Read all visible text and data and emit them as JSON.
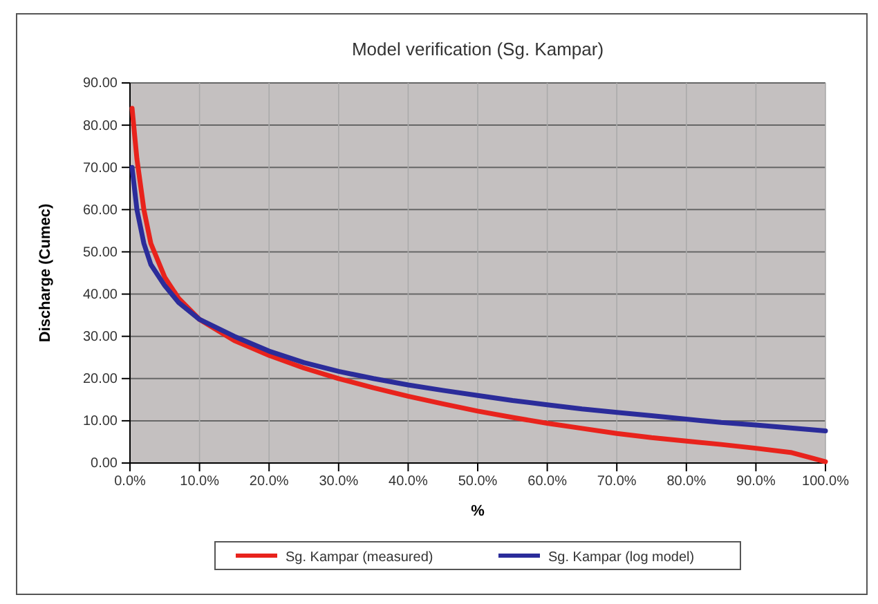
{
  "chart_data": {
    "type": "line",
    "title": "Model verification (Sg. Kampar)",
    "xlabel": "%",
    "ylabel": "Discharge (Cumec)",
    "xlim": [
      0,
      100
    ],
    "xticks": [
      {
        "value": 0,
        "label": "0.0%"
      },
      {
        "value": 10,
        "label": "10.0%"
      },
      {
        "value": 20,
        "label": "20.0%"
      },
      {
        "value": 30,
        "label": "30.0%"
      },
      {
        "value": 40,
        "label": "40.0%"
      },
      {
        "value": 50,
        "label": "50.0%"
      },
      {
        "value": 60,
        "label": "60.0%"
      },
      {
        "value": 70,
        "label": "70.0%"
      },
      {
        "value": 80,
        "label": "80.0%"
      },
      {
        "value": 90,
        "label": "90.0%"
      },
      {
        "value": 100,
        "label": "100.0%"
      }
    ],
    "ylim": [
      0,
      90
    ],
    "yticks": [
      {
        "value": 0,
        "label": "0.00"
      },
      {
        "value": 10,
        "label": "10.00"
      },
      {
        "value": 20,
        "label": "20.00"
      },
      {
        "value": 30,
        "label": "30.00"
      },
      {
        "value": 40,
        "label": "40.00"
      },
      {
        "value": 50,
        "label": "50.00"
      },
      {
        "value": 60,
        "label": "60.00"
      },
      {
        "value": 70,
        "label": "70.00"
      },
      {
        "value": 80,
        "label": "80.00"
      },
      {
        "value": 90,
        "label": "90.00"
      }
    ],
    "grid": true,
    "legend": "bottom",
    "marker": "none",
    "line_style": "solid",
    "series": [
      {
        "name": "Sg. Kampar (measured)",
        "color": "#e8231c",
        "x": [
          0.3,
          1,
          2,
          3,
          5,
          7,
          10,
          15,
          20,
          25,
          30,
          35,
          40,
          45,
          50,
          55,
          60,
          65,
          70,
          75,
          80,
          85,
          90,
          95,
          98,
          100
        ],
        "values": [
          84,
          72,
          60,
          52,
          44,
          39,
          34,
          29,
          25.5,
          22.5,
          20,
          17.8,
          15.8,
          14,
          12.3,
          10.8,
          9.4,
          8.2,
          7,
          6,
          5.2,
          4.4,
          3.5,
          2.5,
          1.2,
          0.3
        ]
      },
      {
        "name": "Sg. Kampar (log model)",
        "color": "#2b2c9a",
        "x": [
          0.3,
          1,
          2,
          3,
          5,
          7,
          10,
          15,
          20,
          25,
          30,
          35,
          40,
          45,
          50,
          55,
          60,
          65,
          70,
          75,
          80,
          85,
          90,
          95,
          100
        ],
        "values": [
          70,
          60,
          52,
          47,
          42,
          38,
          34,
          30,
          26.5,
          23.8,
          21.7,
          20,
          18.5,
          17.2,
          16,
          14.8,
          13.8,
          12.8,
          12,
          11.2,
          10.4,
          9.6,
          9,
          8.3,
          7.6
        ]
      }
    ]
  }
}
